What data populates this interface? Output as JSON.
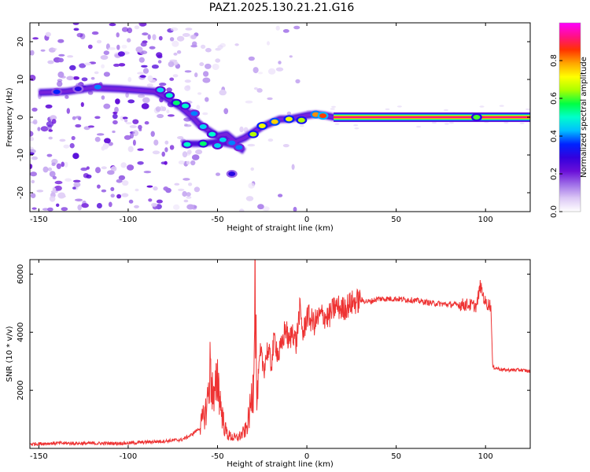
{
  "title": "PAZ1.2025.130.21.21.G16",
  "chart_data": [
    {
      "type": "heatmap",
      "xlabel": "Height of straight line (km)",
      "ylabel": "Frequency (Hz)",
      "xlim": [
        -155,
        125
      ],
      "ylim": [
        -25,
        25
      ],
      "xticks": [
        -150,
        -100,
        -50,
        0,
        50,
        100
      ],
      "yticks": [
        -20,
        -10,
        0,
        10,
        20
      ],
      "colorbar": {
        "label": "Normalized spectral amplitude",
        "range": [
          0.0,
          1.0
        ],
        "ticks": [
          0.0,
          0.2,
          0.4,
          0.6,
          0.8
        ],
        "colormap": [
          "#ffffff",
          "#dcc8f5",
          "#a070e8",
          "#6a0fd8",
          "#3300dd",
          "#0022ff",
          "#00bfff",
          "#00ffcc",
          "#00ff44",
          "#aaff00",
          "#ffff00",
          "#ffa500",
          "#ff3300",
          "#ff1088",
          "#ff00ff"
        ]
      },
      "signal_track": {
        "note_free": true,
        "points": [
          {
            "x": -150,
            "y": 6.5
          },
          {
            "x": -135,
            "y": 6.8
          },
          {
            "x": -120,
            "y": 7.8
          },
          {
            "x": -105,
            "y": 7.5
          },
          {
            "x": -85,
            "y": 6.8
          },
          {
            "x": -80,
            "y": 5.5
          },
          {
            "x": -75,
            "y": 4.0
          },
          {
            "x": -70,
            "y": 2.5
          },
          {
            "x": -65,
            "y": 0.5
          },
          {
            "x": -60,
            "y": -2.0
          },
          {
            "x": -55,
            "y": -3.5
          },
          {
            "x": -50,
            "y": -5.0
          },
          {
            "x": -45,
            "y": -4.5
          },
          {
            "x": -40,
            "y": -6.5
          },
          {
            "x": -35,
            "y": -5.5
          },
          {
            "x": -30,
            "y": -4.0
          },
          {
            "x": -25,
            "y": -2.5
          },
          {
            "x": -20,
            "y": -1.5
          },
          {
            "x": -15,
            "y": -0.5
          },
          {
            "x": -10,
            "y": -0.5
          },
          {
            "x": -5,
            "y": 0.0
          },
          {
            "x": 0,
            "y": 0.5
          },
          {
            "x": 5,
            "y": 0.8
          },
          {
            "x": 10,
            "y": 0.5
          },
          {
            "x": 15,
            "y": 0.0
          },
          {
            "x": 125,
            "y": 0.0
          }
        ],
        "branch": [
          {
            "x": -70,
            "y": -7.0
          },
          {
            "x": -60,
            "y": -7.0
          },
          {
            "x": -50,
            "y": -6.5
          },
          {
            "x": -40,
            "y": -7.5
          },
          {
            "x": -35,
            "y": -9.0
          }
        ],
        "blobs": [
          {
            "x": -140,
            "y": 6.7,
            "a": 0.35
          },
          {
            "x": -128,
            "y": 7.5,
            "a": 0.3
          },
          {
            "x": -117,
            "y": 8.0,
            "a": 0.4
          },
          {
            "x": -82,
            "y": 7.2,
            "a": 0.45
          },
          {
            "x": -77,
            "y": 5.8,
            "a": 0.5
          },
          {
            "x": -73,
            "y": 3.8,
            "a": 0.55
          },
          {
            "x": -68,
            "y": 3.0,
            "a": 0.5
          },
          {
            "x": -63,
            "y": 1.0,
            "a": 0.4
          },
          {
            "x": -58,
            "y": -2.5,
            "a": 0.45
          },
          {
            "x": -53,
            "y": -4.5,
            "a": 0.5
          },
          {
            "x": -47,
            "y": -6.0,
            "a": 0.45
          },
          {
            "x": -42,
            "y": -6.8,
            "a": 0.4
          },
          {
            "x": -30,
            "y": -4.5,
            "a": 0.65
          },
          {
            "x": -25,
            "y": -2.3,
            "a": 0.7
          },
          {
            "x": -18,
            "y": -1.2,
            "a": 0.75
          },
          {
            "x": -10,
            "y": -0.5,
            "a": 0.7
          },
          {
            "x": -3,
            "y": -0.8,
            "a": 0.65
          },
          {
            "x": 5,
            "y": 0.7,
            "a": 0.8
          },
          {
            "x": 9,
            "y": 0.4,
            "a": 0.85
          },
          {
            "x": -67,
            "y": -7.2,
            "a": 0.5
          },
          {
            "x": -58,
            "y": -7.0,
            "a": 0.55
          },
          {
            "x": -50,
            "y": -7.5,
            "a": 0.45
          },
          {
            "x": -38,
            "y": -8.0,
            "a": 0.4
          },
          {
            "x": -42,
            "y": -15.0,
            "a": 0.3
          },
          {
            "x": 95,
            "y": 0.0,
            "a": 0.6
          }
        ]
      }
    },
    {
      "type": "line",
      "xlabel": "Height of straight line (km)",
      "ylabel": "SNR (10 * v/v)",
      "xlim": [
        -155,
        125
      ],
      "ylim": [
        0,
        6500
      ],
      "xticks": [
        -150,
        -100,
        -50,
        0,
        50,
        100
      ],
      "yticks": [
        2000,
        4000,
        6000
      ],
      "color": "#ee3333",
      "series": [
        {
          "x": [
            -155,
            -140,
            -120,
            -100,
            -80,
            -70,
            -65,
            -60,
            -56,
            -54,
            -52,
            -50,
            -48,
            -46,
            -44,
            -42,
            -40,
            -38,
            -36,
            -34,
            -32,
            -30,
            -29,
            -28,
            -27,
            -26,
            -24,
            -22,
            -20,
            -18,
            -16,
            -14,
            -12,
            -10,
            -8,
            -6,
            -4,
            -2,
            0,
            4,
            8,
            12,
            16,
            20,
            25,
            30,
            35,
            40,
            45,
            50,
            60,
            70,
            80,
            90,
            95,
            97,
            100,
            102,
            103,
            104,
            110,
            115,
            120,
            125
          ],
          "y": [
            150,
            180,
            170,
            180,
            250,
            300,
            450,
            700,
            1400,
            2800,
            1500,
            2500,
            1400,
            700,
            450,
            400,
            350,
            400,
            500,
            650,
            1200,
            2200,
            6400,
            1500,
            2500,
            3200,
            2800,
            3400,
            2900,
            3800,
            3200,
            3500,
            4200,
            3600,
            4100,
            3600,
            4800,
            3900,
            4600,
            4300,
            4600,
            4500,
            4900,
            4800,
            5000,
            5100,
            5050,
            5150,
            5150,
            5150,
            5100,
            5000,
            4950,
            4950,
            4900,
            5600,
            5000,
            4950,
            4900,
            2800,
            2700,
            2700,
            2700,
            2650
          ]
        }
      ]
    }
  ]
}
